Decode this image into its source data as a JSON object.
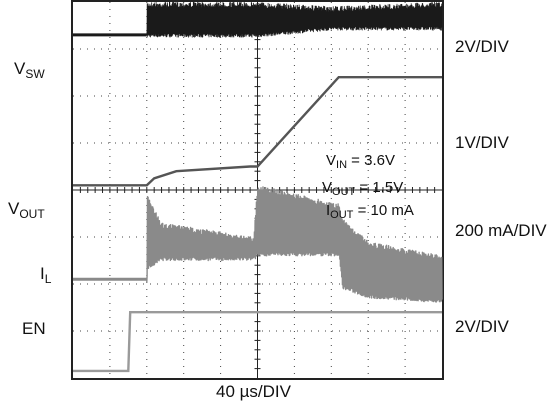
{
  "chart_data": {
    "type": "line",
    "x_axis": {
      "label": "40 µs/DIV",
      "divisions": 10,
      "range": [
        0,
        10
      ]
    },
    "y_axis": {
      "divisions": 8,
      "range": [
        0,
        8
      ]
    },
    "grid": true,
    "traces": [
      {
        "name_main": "V",
        "name_sub": "SW",
        "scale": "2V/DIV",
        "color": "#1a1a1a",
        "style": "switching",
        "low_level_div": 7.3,
        "envelope": [
          [
            0,
            7.3,
            7.3
          ],
          [
            2.0,
            7.3,
            7.3
          ],
          [
            2.0,
            7.25,
            8.0
          ],
          [
            5.0,
            7.25,
            8.0
          ],
          [
            7.0,
            7.4,
            7.9
          ],
          [
            10,
            7.4,
            8.0
          ]
        ]
      },
      {
        "name_main": "V",
        "name_sub": "OUT",
        "scale": "1V/DIV",
        "color": "#555555",
        "style": "line",
        "points": [
          [
            0,
            4.1
          ],
          [
            2.0,
            4.1
          ],
          [
            2.2,
            4.25
          ],
          [
            2.8,
            4.4
          ],
          [
            4.8,
            4.5
          ],
          [
            5.0,
            4.5
          ],
          [
            7.2,
            6.4
          ],
          [
            10,
            6.4
          ]
        ]
      },
      {
        "name_main": "I",
        "name_sub": "L",
        "scale": "200 mA/DIV",
        "color": "#8a8a8a",
        "style": "ripple",
        "dc_level_div": 2.1,
        "envelope": [
          [
            0,
            2.1,
            2.1
          ],
          [
            2.0,
            2.1,
            2.1
          ],
          [
            2.0,
            2.3,
            3.9
          ],
          [
            2.4,
            2.5,
            3.3
          ],
          [
            4.9,
            2.5,
            3.0
          ],
          [
            5.0,
            2.6,
            4.1
          ],
          [
            7.2,
            2.6,
            3.7
          ],
          [
            7.3,
            1.9,
            3.4
          ],
          [
            8.0,
            1.7,
            2.9
          ],
          [
            10,
            1.6,
            2.6
          ]
        ]
      },
      {
        "name_main": "EN",
        "name_sub": "",
        "scale": "2V/DIV",
        "color": "#9a9a9a",
        "style": "line",
        "points": [
          [
            0,
            0.15
          ],
          [
            1.5,
            0.15
          ],
          [
            1.55,
            1.4
          ],
          [
            10,
            1.4
          ]
        ]
      }
    ],
    "annotations": [
      {
        "main": "V",
        "sub": "IN",
        "rest": " = 3.6V"
      },
      {
        "main": "V",
        "sub": "OUT",
        "rest": " = 1.5V"
      },
      {
        "main": "I",
        "sub": "OUT",
        "rest": " = 10 mA"
      }
    ]
  }
}
